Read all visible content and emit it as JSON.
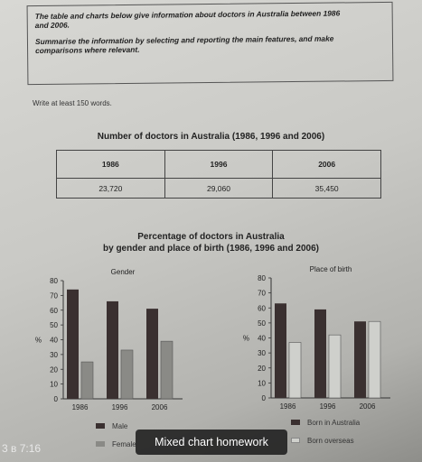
{
  "task": {
    "lines": [
      "The table and charts below give information about doctors in Australia between 1986",
      "and 2006.",
      "Summarise the information by selecting and reporting the main features, and make",
      "comparisons where relevant."
    ]
  },
  "instruction": "Write at least 150 words.",
  "table": {
    "title": "Number of doctors in Australia (1986, 1996 and 2006)",
    "headers": [
      "1986",
      "1996",
      "2006"
    ],
    "values": [
      "23,720",
      "29,060",
      "35,450"
    ]
  },
  "charts_title": {
    "line1": "Percentage of doctors in Australia",
    "line2": "by gender and place of birth (1986, 1996 and 2006)"
  },
  "overlay": {
    "caption": "Mixed chart homework",
    "timestamp": "3 в 7:16"
  },
  "colors": {
    "dark_bar": "#3a3030",
    "mid_bar": "#8a8a86",
    "light_bar": "#cfd0cc"
  },
  "chart_data": [
    {
      "type": "bar",
      "title": "Gender",
      "ylabel": "%",
      "ylim": [
        0,
        80
      ],
      "yticks": [
        "0",
        "10",
        "20",
        "30",
        "40",
        "50",
        "60",
        "70",
        "80"
      ],
      "categories": [
        "1986",
        "1996",
        "2006"
      ],
      "series": [
        {
          "name": "Male",
          "values": [
            74,
            66,
            61
          ]
        },
        {
          "name": "Female",
          "values": [
            25,
            33,
            39
          ]
        }
      ],
      "legend": "bottom"
    },
    {
      "type": "bar",
      "title": "Place of birth",
      "ylabel": "%",
      "ylim": [
        0,
        80
      ],
      "yticks": [
        "0",
        "10",
        "20",
        "30",
        "40",
        "50",
        "60",
        "70",
        "80"
      ],
      "categories": [
        "1986",
        "1996",
        "2006"
      ],
      "series": [
        {
          "name": "Born in Australia",
          "values": [
            63,
            59,
            51
          ]
        },
        {
          "name": "Born overseas",
          "values": [
            37,
            42,
            51
          ]
        }
      ],
      "legend": "bottom"
    }
  ]
}
